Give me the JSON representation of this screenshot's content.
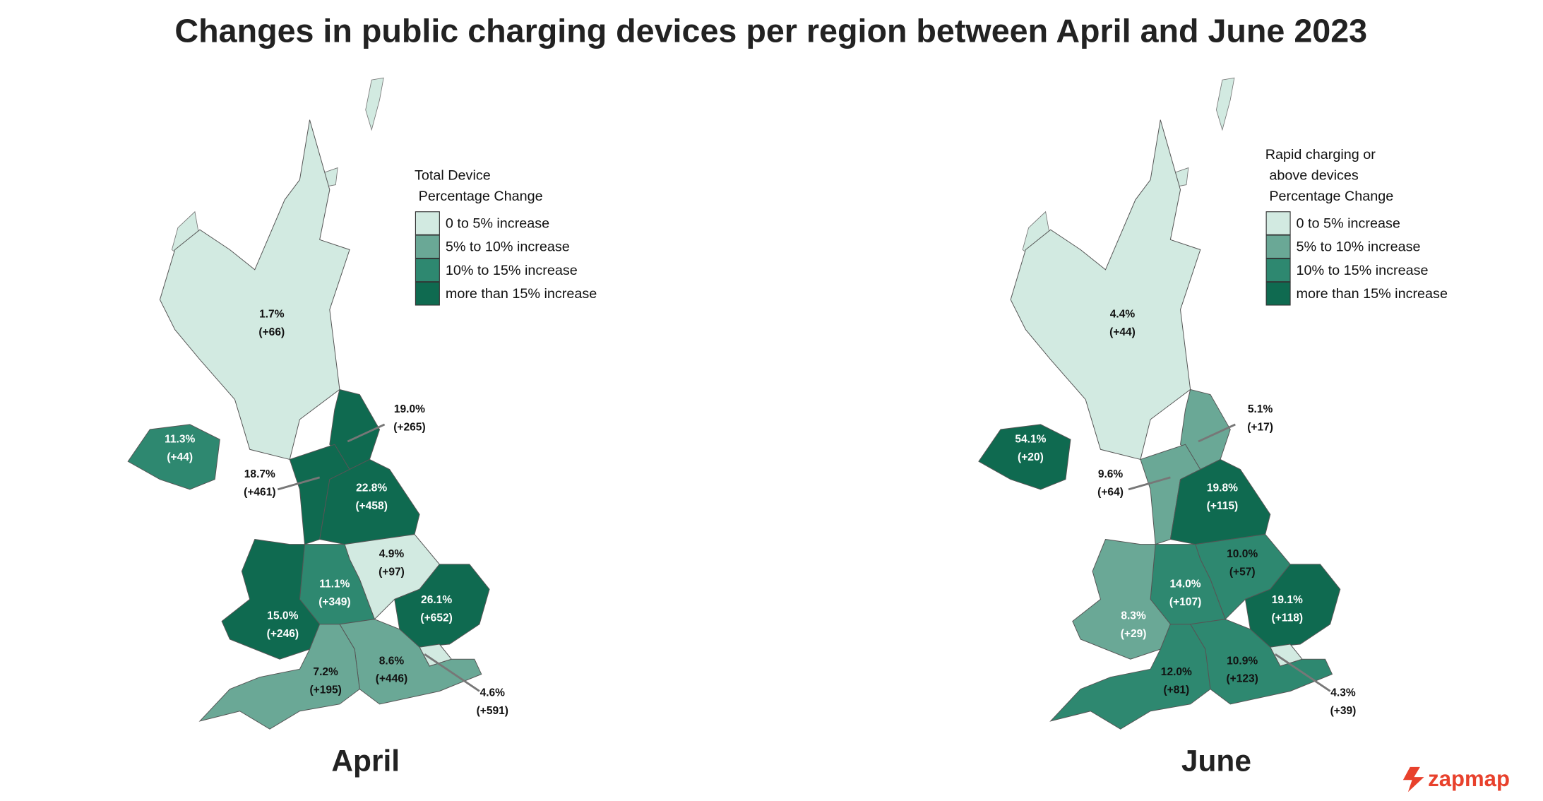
{
  "header": {
    "title": "Changes in public charging devices per region between April and June 2023"
  },
  "maps": [
    {
      "caption": "April",
      "legend": {
        "title": [
          "Total Device",
          "Percentage Change"
        ],
        "items": [
          {
            "label": "0 to 5% increase",
            "color": "#d2eae1"
          },
          {
            "label": "5% to 10% increase",
            "color": "#6aa896"
          },
          {
            "label": "10% to 15% increase",
            "color": "#2e8870"
          },
          {
            "label": "more than 15% increase",
            "color": "#0f6a50"
          }
        ]
      },
      "regions": [
        {
          "percent": "1.7%",
          "count": "(+66)",
          "color": "#d2eae1"
        },
        {
          "percent": "19.0%",
          "count": "(+265)",
          "color": "#0f6a50"
        },
        {
          "percent": "18.7%",
          "count": "(+461)",
          "color": "#0f6a50"
        },
        {
          "percent": "22.8%",
          "count": "(+458)",
          "color": "#0f6a50"
        },
        {
          "percent": "4.9%",
          "count": "(+97)",
          "color": "#d2eae1"
        },
        {
          "percent": "11.1%",
          "count": "(+349)",
          "color": "#2e8870"
        },
        {
          "percent": "15.0%",
          "count": "(+246)",
          "color": "#0f6a50"
        },
        {
          "percent": "26.1%",
          "count": "(+652)",
          "color": "#0f6a50"
        },
        {
          "percent": "4.6%",
          "count": "(+591)",
          "color": "#d2eae1"
        },
        {
          "percent": "8.6%",
          "count": "(+446)",
          "color": "#6aa896"
        },
        {
          "percent": "7.2%",
          "count": "(+195)",
          "color": "#6aa896"
        },
        {
          "percent": "11.3%",
          "count": "(+44)",
          "color": "#2e8870"
        }
      ]
    },
    {
      "caption": "June",
      "legend": {
        "title": [
          "Rapid charging or",
          "above devices",
          "Percentage Change"
        ],
        "items": [
          {
            "label": "0 to 5% increase",
            "color": "#d2eae1"
          },
          {
            "label": "5% to 10% increase",
            "color": "#6aa896"
          },
          {
            "label": "10% to 15% increase",
            "color": "#2e8870"
          },
          {
            "label": "more than 15% increase",
            "color": "#0f6a50"
          }
        ]
      },
      "regions": [
        {
          "percent": "4.4%",
          "count": "(+44)",
          "color": "#d2eae1"
        },
        {
          "percent": "5.1%",
          "count": "(+17)",
          "color": "#6aa896"
        },
        {
          "percent": "9.6%",
          "count": "(+64)",
          "color": "#6aa896"
        },
        {
          "percent": "19.8%",
          "count": "(+115)",
          "color": "#0f6a50"
        },
        {
          "percent": "10.0%",
          "count": "(+57)",
          "color": "#2e8870"
        },
        {
          "percent": "14.0%",
          "count": "(+107)",
          "color": "#2e8870"
        },
        {
          "percent": "8.3%",
          "count": "(+29)",
          "color": "#6aa896"
        },
        {
          "percent": "19.1%",
          "count": "(+118)",
          "color": "#0f6a50"
        },
        {
          "percent": "4.3%",
          "count": "(+39)",
          "color": "#d2eae1"
        },
        {
          "percent": "10.9%",
          "count": "(+123)",
          "color": "#2e8870"
        },
        {
          "percent": "12.0%",
          "count": "(+81)",
          "color": "#2e8870"
        },
        {
          "percent": "54.1%",
          "count": "(+20)",
          "color": "#0f6a50"
        }
      ]
    }
  ],
  "logo": "zapmap"
}
